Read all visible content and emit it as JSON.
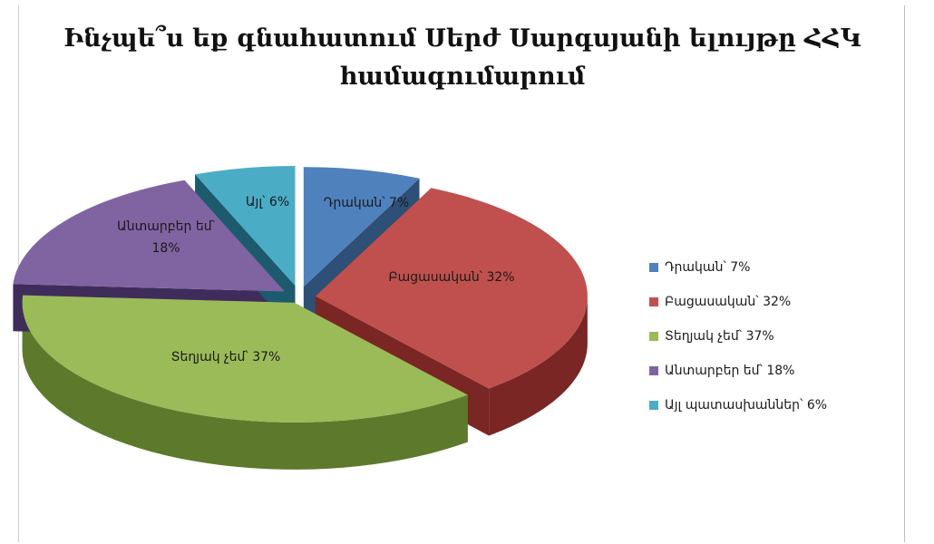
{
  "chart_data": {
    "type": "pie",
    "title": "Ինչպե՞ս եք գնահատում Սերժ Սարգսյանի ելույթը ՀՀԿ համագումարում",
    "slices": [
      {
        "name": "Դրական",
        "value": 7,
        "color": "#4f81bd",
        "side": "#2e4f76",
        "label": "Դրական՝ 7%",
        "legend": "Դրական՝ 7%"
      },
      {
        "name": "Բացասական",
        "value": 32,
        "color": "#c0504d",
        "side": "#7a2624",
        "label": "Բացասական՝ 32%",
        "legend": "Բացասական՝ 32%"
      },
      {
        "name": "Տեղյակ չեմ",
        "value": 37,
        "color": "#9bbb59",
        "side": "#5d7a2c",
        "label": "Տեղյակ չեմ՝ 37%",
        "legend": "Տեղյակ չեմ՝ 37%"
      },
      {
        "name": "Անտարբեր եմ",
        "value": 18,
        "color": "#8064a2",
        "side": "#3f2c5a",
        "label": "Անտարբեր եմ՝ 18%",
        "legend": "Անտարբեր եմ՝ 18%"
      },
      {
        "name": "Այլ պատասխաններ",
        "value": 6,
        "color": "#4bacc6",
        "side": "#1e5a6e",
        "label": "Այլ՝ 6%",
        "legend": "Այլ պատասխաններ՝ 6%"
      }
    ],
    "legend_position": "right",
    "exploded": true,
    "three_d": true
  }
}
